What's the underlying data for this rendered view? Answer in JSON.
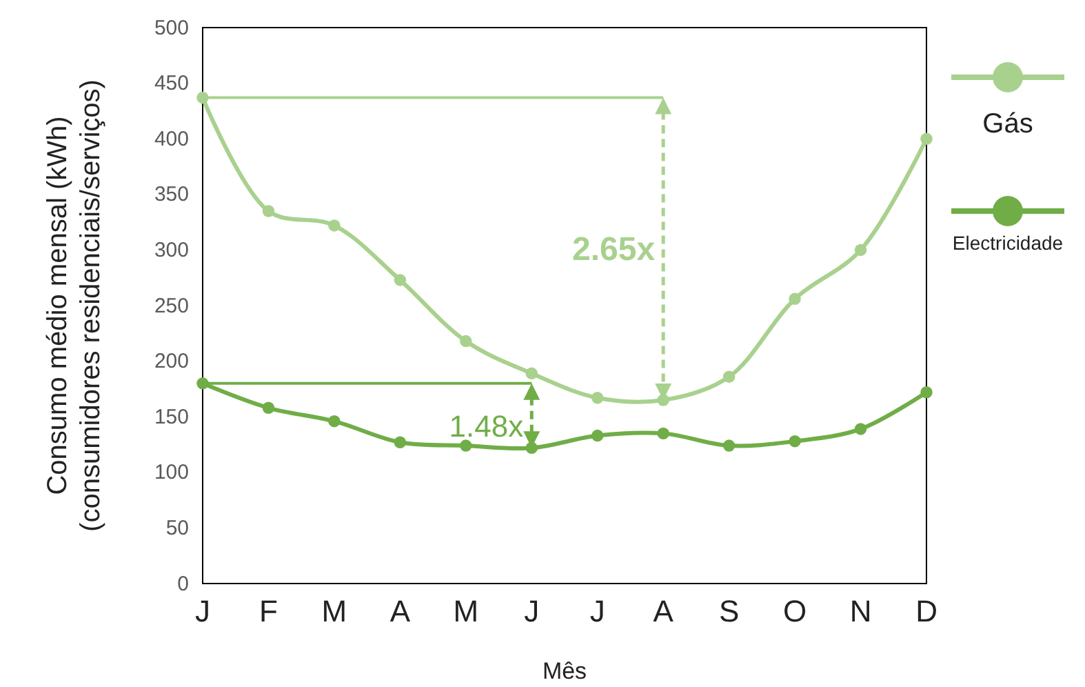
{
  "chart_data": {
    "type": "line",
    "xlabel": "Mês",
    "ylabel": "Consumo médio mensal (kWh)\n(consumidores residenciais/serviços)",
    "categories": [
      "J",
      "F",
      "M",
      "A",
      "M",
      "J",
      "J",
      "A",
      "S",
      "O",
      "N",
      "D"
    ],
    "series": [
      {
        "name": "Gás",
        "color": "#a9d18e",
        "values": [
          437,
          335,
          322,
          273,
          218,
          189,
          167,
          165,
          186,
          256,
          300,
          400
        ]
      },
      {
        "name": "Electricidade",
        "color": "#70ad47",
        "values": [
          180,
          158,
          146,
          127,
          124,
          122,
          133,
          135,
          124,
          128,
          139,
          172
        ]
      }
    ],
    "annotations": [
      "2.65x",
      "1.48x"
    ],
    "ylim": [
      0,
      500
    ],
    "yticks": [
      0,
      50,
      100,
      150,
      200,
      250,
      300,
      350,
      400,
      450,
      500
    ],
    "grid": false,
    "legend": "right",
    "marker": "circle",
    "line_style": "solid"
  }
}
